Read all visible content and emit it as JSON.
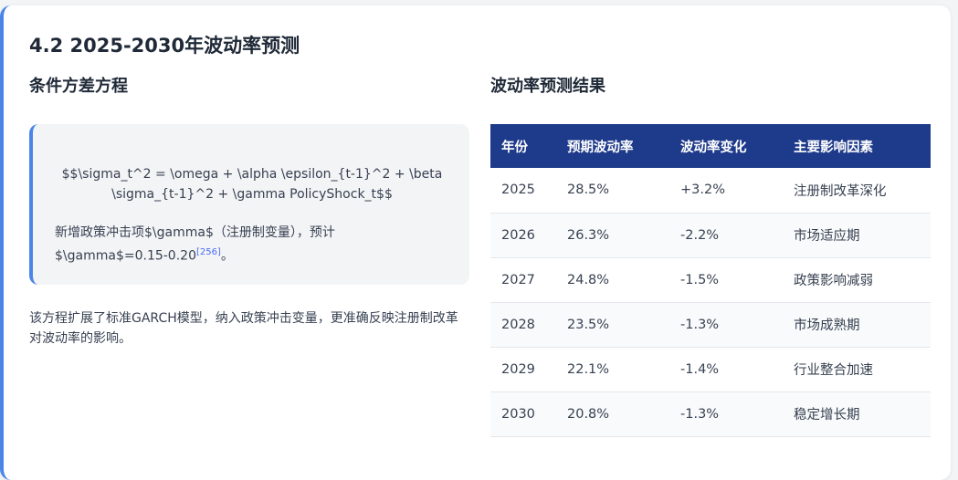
{
  "section": {
    "title": "4.2 2025-2030年波动率预测"
  },
  "left": {
    "subtitle": "条件方差方程",
    "formula_line1": "$$\\sigma_t^2 = \\omega + \\alpha \\epsilon_{t-1}^2 + \\beta",
    "formula_line2": "\\sigma_{t-1}^2 + \\gamma PolicyShock_t$$",
    "note_line1": "新增政策冲击项$\\gamma$（注册制变量），预计",
    "note_line2": "$\\gamma$=0.15-0.20",
    "note_ref": "[256]",
    "note_tail": "。",
    "paragraph": "该方程扩展了标准GARCH模型，纳入政策冲击变量，更准确反映注册制改革对波动率的影响。"
  },
  "right": {
    "subtitle": "波动率预测结果",
    "table": {
      "headers": [
        "年份",
        "预期波动率",
        "波动率变化",
        "主要影响因素"
      ],
      "rows": [
        [
          "2025",
          "28.5%",
          "+3.2%",
          "注册制改革深化"
        ],
        [
          "2026",
          "26.3%",
          "-2.2%",
          "市场适应期"
        ],
        [
          "2027",
          "24.8%",
          "-1.5%",
          "政策影响减弱"
        ],
        [
          "2028",
          "23.5%",
          "-1.3%",
          "市场成熟期"
        ],
        [
          "2029",
          "22.1%",
          "-1.4%",
          "行业整合加速"
        ],
        [
          "2030",
          "20.8%",
          "-1.3%",
          "稳定增长期"
        ]
      ]
    }
  },
  "colors": {
    "accent": "#4a86e8",
    "table_header": "#1e3a8a",
    "citation": "#4a6cf7"
  }
}
